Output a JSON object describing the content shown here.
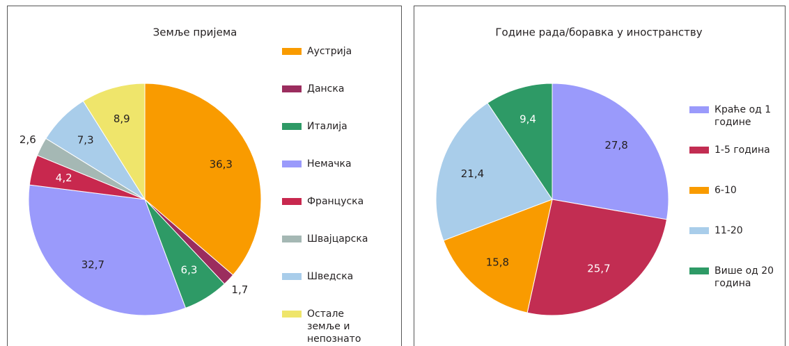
{
  "chart_data": [
    {
      "type": "pie",
      "title": "Земље пријема",
      "categories": [
        "Аустрија",
        "Данска",
        "Италија",
        "Немачка",
        "Француска",
        "Швајцарска",
        "Шведска",
        "Остале земље и непознато"
      ],
      "values": [
        36.3,
        1.7,
        6.3,
        32.7,
        4.2,
        2.6,
        7.3,
        8.9
      ],
      "value_labels": [
        "36,3",
        "1,7",
        "6,3",
        "32,7",
        "4,2",
        "2,6",
        "7,3",
        "8,9"
      ],
      "colors": [
        "#f99b00",
        "#9b2d5e",
        "#2e9a66",
        "#9a9afb",
        "#c8284e",
        "#a5b8b4",
        "#a9cdea",
        "#efe56b"
      ]
    },
    {
      "type": "pie",
      "title": "Године рада/боравка у иностранству",
      "categories": [
        "Краће од 1 године",
        "1-5 година",
        "6-10",
        "11-20",
        "Више од 20 година"
      ],
      "values": [
        27.8,
        25.7,
        15.8,
        21.4,
        9.4
      ],
      "value_labels": [
        "27,8",
        "25,7",
        "15,8",
        "21,4",
        "9,4"
      ],
      "colors": [
        "#9a9afb",
        "#c22d52",
        "#f99b00",
        "#a9cdea",
        "#2e9a66"
      ]
    }
  ]
}
